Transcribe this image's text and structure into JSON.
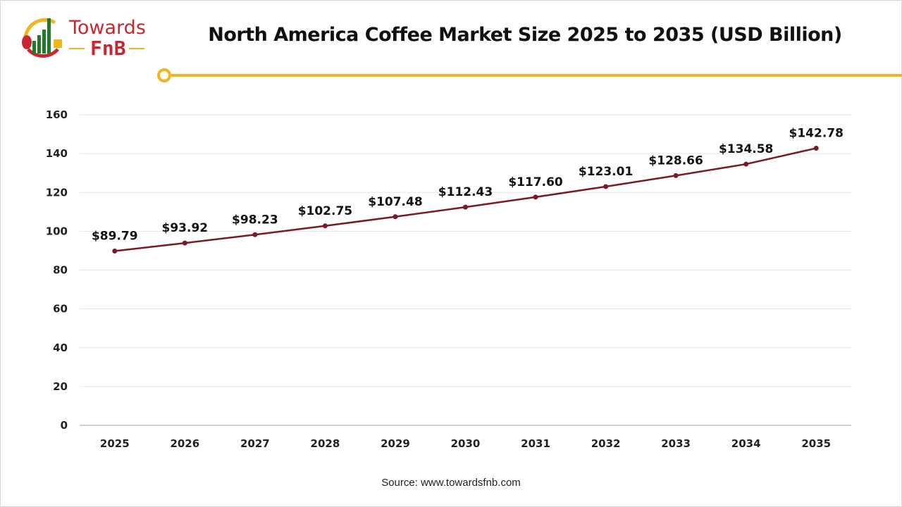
{
  "brand": {
    "line1": "Towards",
    "line2": "FnB",
    "colors": {
      "red": "#c8282d",
      "green": "#1f7a2a",
      "yellow": "#f2b51e"
    }
  },
  "source": "Source: www.towardsfnb.com",
  "chart_data": {
    "type": "line",
    "title": "North America Coffee Market Size 2025 to 2035 (USD Billion)",
    "xlabel": "",
    "ylabel": "",
    "categories": [
      "2025",
      "2026",
      "2027",
      "2028",
      "2029",
      "2030",
      "2031",
      "2032",
      "2033",
      "2034",
      "2035"
    ],
    "values": [
      89.79,
      93.92,
      98.23,
      102.75,
      107.48,
      112.43,
      117.6,
      123.01,
      128.66,
      134.58,
      142.78
    ],
    "data_labels": [
      "$89.79",
      "$93.92",
      "$98.23",
      "$102.75",
      "$107.48",
      "$112.43",
      "$117.60",
      "$123.01",
      "$128.66",
      "$134.58",
      "$142.78"
    ],
    "ylim": [
      0,
      160
    ],
    "yticks": [
      0,
      20,
      40,
      60,
      80,
      100,
      120,
      140,
      160
    ],
    "grid": true,
    "legend": "none",
    "line_color": "#7a1b24",
    "accent_color": "#f2b51e"
  }
}
